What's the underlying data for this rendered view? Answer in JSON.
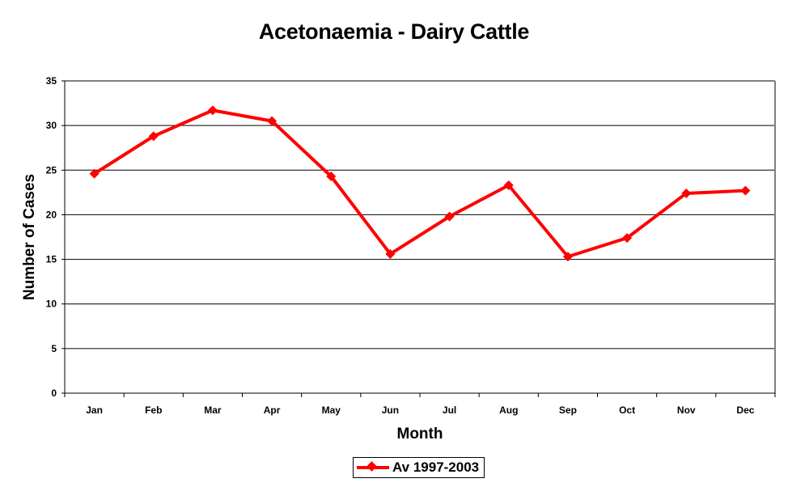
{
  "chart_data": {
    "type": "line",
    "title": "Acetonaemia - Dairy Cattle",
    "xlabel": "Month",
    "ylabel": "Number of Cases",
    "categories": [
      "Jan",
      "Feb",
      "Mar",
      "Apr",
      "May",
      "Jun",
      "Jul",
      "Aug",
      "Sep",
      "Oct",
      "Nov",
      "Dec"
    ],
    "series": [
      {
        "name": "Av 1997-2003",
        "color": "#ff0000",
        "marker": "diamond",
        "values": [
          24.6,
          28.8,
          31.7,
          30.5,
          24.3,
          15.6,
          19.8,
          23.3,
          15.3,
          17.4,
          22.4,
          22.7
        ]
      }
    ],
    "ylim": [
      0,
      35
    ],
    "yticks": [
      0,
      5,
      10,
      15,
      20,
      25,
      30,
      35
    ],
    "grid": true,
    "legend_position": "bottom"
  },
  "legend": {
    "label": "Av 1997-2003"
  }
}
